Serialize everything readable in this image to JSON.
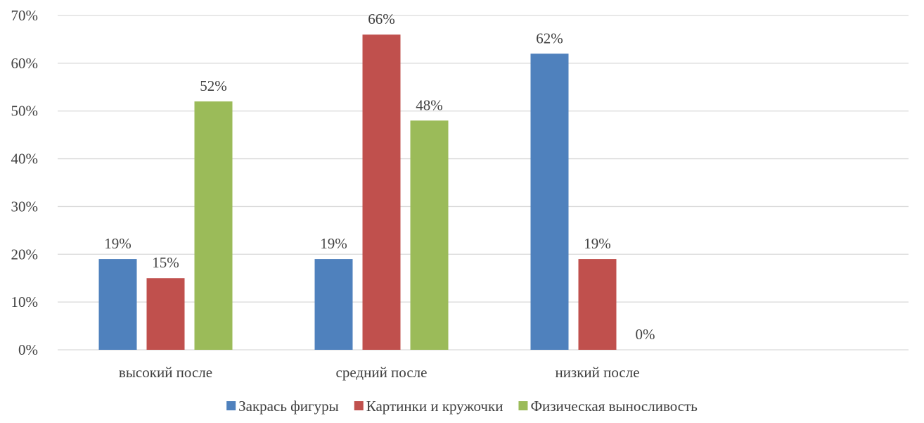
{
  "chart_data": {
    "type": "bar",
    "categories": [
      "высокий после",
      "средний после",
      "низкий после"
    ],
    "series": [
      {
        "name": "Закрась фигуры",
        "color": "#4f81bd",
        "values": [
          19,
          19,
          62
        ]
      },
      {
        "name": "Картинки и кружочки",
        "color": "#c0504d",
        "values": [
          15,
          66,
          19
        ]
      },
      {
        "name": "Физическая выносливость",
        "color": "#9bbb59",
        "values": [
          52,
          48,
          0
        ]
      }
    ],
    "data_labels": [
      [
        "19%",
        "19%",
        "62%"
      ],
      [
        "15%",
        "66%",
        "19%"
      ],
      [
        "52%",
        "48%",
        "0%"
      ]
    ],
    "y_ticks": [
      0,
      10,
      20,
      30,
      40,
      50,
      60,
      70
    ],
    "y_tick_labels": [
      "0%",
      "10%",
      "20%",
      "30%",
      "40%",
      "50%",
      "60%",
      "70%"
    ],
    "ylim": [
      0,
      70
    ],
    "grid": true,
    "legend_position": "bottom"
  }
}
